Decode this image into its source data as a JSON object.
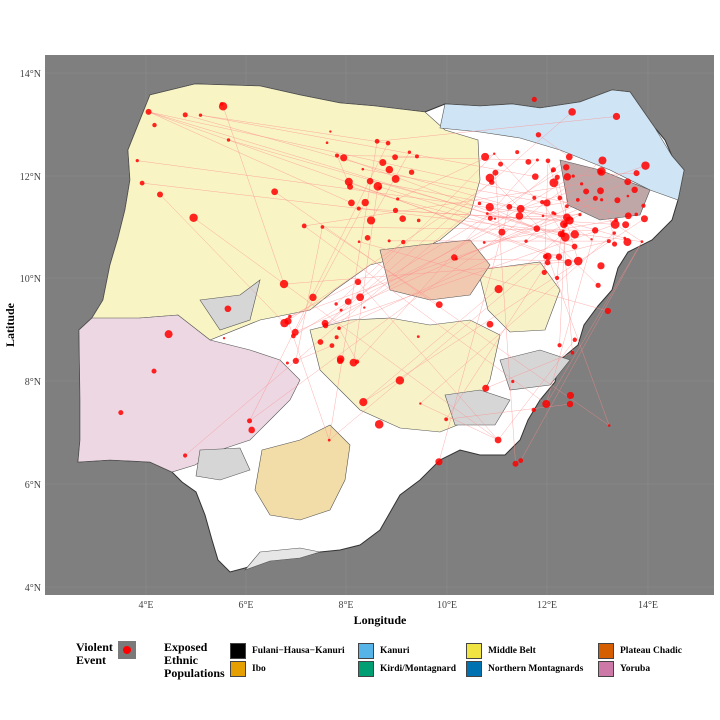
{
  "map": {
    "axis_x_title": "Longitude",
    "axis_y_title": "Latitude",
    "x_ticks": [
      "4°E",
      "6°E",
      "8°E",
      "10°E",
      "12°E",
      "14°E"
    ],
    "y_ticks": [
      "14°N",
      "12°N",
      "10°N",
      "8°N",
      "6°N",
      "4°N"
    ],
    "x_range": [
      2.0,
      15.3
    ],
    "y_range": [
      3.8,
      14.3
    ],
    "background_color": "#7f7f7f",
    "event_color": "#ff0000",
    "line_color": "#ff8a8a"
  },
  "legend": {
    "violent_title": "Violent Event",
    "exposed_title": "Exposed Ethnic Populations",
    "items": [
      {
        "label": "Fulani−Hausa−Kanuri",
        "color": "#000000"
      },
      {
        "label": "Ibo",
        "color": "#e69f00"
      },
      {
        "label": "Kanuri",
        "color": "#56b4e9"
      },
      {
        "label": "Kirdi/Montagnard",
        "color": "#009e73"
      },
      {
        "label": "Middle Belt",
        "color": "#f0e442"
      },
      {
        "label": "Northern Montagnards",
        "color": "#0072b2"
      },
      {
        "label": "Plateau Chadic",
        "color": "#d55e00"
      },
      {
        "label": "Yoruba",
        "color": "#cc79a7"
      }
    ]
  }
}
